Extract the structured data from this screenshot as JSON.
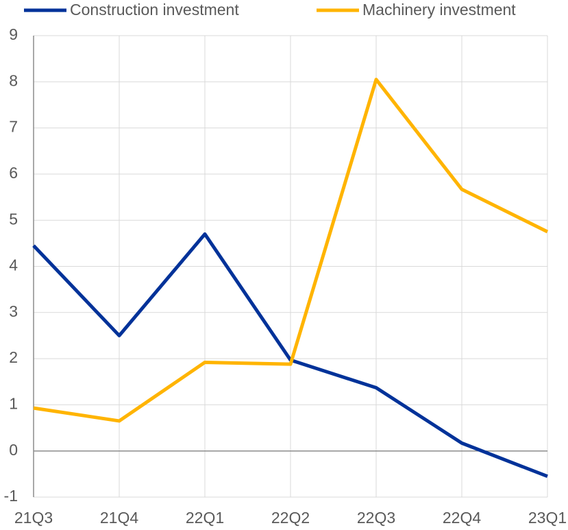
{
  "chart_data": {
    "type": "line",
    "categories": [
      "21Q3",
      "21Q4",
      "22Q1",
      "22Q2",
      "22Q3",
      "22Q4",
      "23Q1"
    ],
    "series": [
      {
        "name": "Construction investment",
        "color": "#003299",
        "values": [
          4.45,
          2.5,
          4.7,
          1.97,
          1.37,
          0.17,
          -0.55
        ]
      },
      {
        "name": "Machinery investment",
        "color": "#ffb400",
        "values": [
          0.93,
          0.65,
          1.92,
          1.88,
          8.05,
          5.67,
          4.75
        ]
      }
    ],
    "ylim": [
      -1,
      9
    ],
    "yticks": [
      -1,
      0,
      1,
      2,
      3,
      4,
      5,
      6,
      7,
      8,
      9
    ],
    "grid": true
  }
}
